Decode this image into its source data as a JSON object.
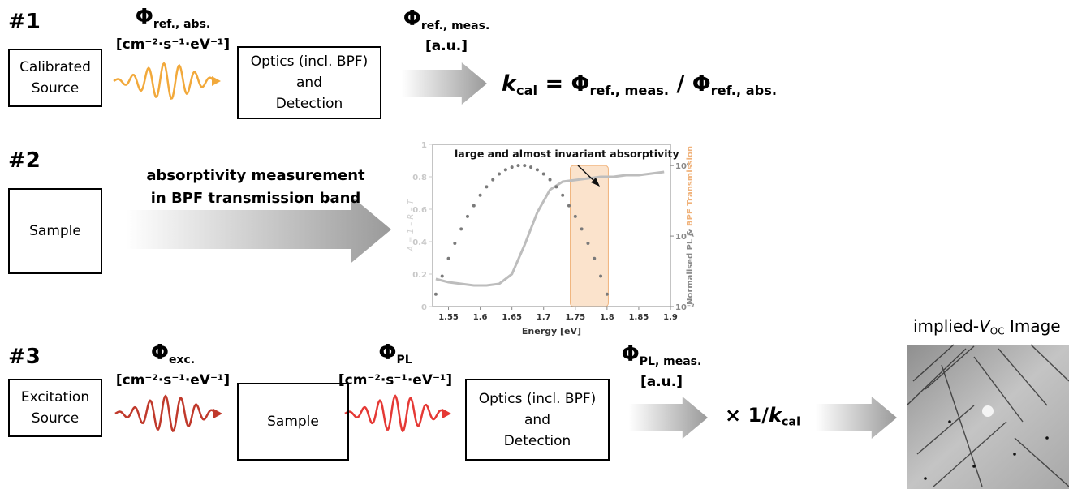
{
  "step1": {
    "label": "#1",
    "source_box": [
      "Calibrated",
      "Source"
    ],
    "flux_in": {
      "symbol": "Φ",
      "sub": "ref., abs.",
      "unit": "[cm⁻²·s⁻¹·eV⁻¹]"
    },
    "detector_box": [
      "Optics (incl. BPF)",
      "and",
      "Detection"
    ],
    "flux_out": {
      "symbol": "Φ",
      "sub": "ref., meas.",
      "unit": "[a.u.]"
    },
    "equation": [
      {
        "text": "k",
        "style": "italic"
      },
      {
        "text": "cal",
        "style": "sub"
      },
      {
        "text": " = Φ"
      },
      {
        "text": "ref., meas.",
        "style": "sub"
      },
      {
        "text": " / Φ"
      },
      {
        "text": "ref., abs.",
        "style": "sub"
      }
    ]
  },
  "step2": {
    "label": "#2",
    "sample_box": [
      "Sample"
    ],
    "arrow_text": [
      "absorptivity measurement",
      "in BPF transmission band"
    ],
    "inset_chart": {
      "type": "combo",
      "annotation": "large and almost invariant absorptivity",
      "xlabel": "Energy [eV]",
      "ylabel": "A = 1 – R – T",
      "y2label": [
        "Normalised PL & ",
        "BPF Transmission"
      ],
      "y2label_colors": [
        "#8a8a8a",
        "#f0b27a"
      ],
      "xlim": [
        1.525,
        1.9
      ],
      "xticks": [
        1.55,
        1.6,
        1.65,
        1.7,
        1.75,
        1.8,
        1.85,
        1.9
      ],
      "ylim": [
        0,
        1
      ],
      "yticks": [
        0,
        0.2,
        0.4,
        0.6,
        0.8,
        1
      ],
      "y2lim": [
        0.01,
        2
      ],
      "y2scale": "log",
      "y2ticks": [
        {
          "value": 0.01,
          "label": "10⁻²"
        },
        {
          "value": 0.1,
          "label": "10⁻¹"
        },
        {
          "value": 1,
          "label": "10⁰"
        }
      ],
      "series": [
        {
          "style": "band",
          "axis": "y2",
          "color": "#fbe3cc",
          "x": [
            1.742,
            1.802
          ],
          "values": [
            1,
            1
          ]
        },
        {
          "style": "line",
          "color": "#bdbdbd",
          "x": [
            1.53,
            1.55,
            1.57,
            1.59,
            1.61,
            1.63,
            1.65,
            1.67,
            1.69,
            1.71,
            1.73,
            1.75,
            1.77,
            1.79,
            1.81,
            1.83,
            1.85,
            1.87,
            1.89
          ],
          "values": [
            0.17,
            0.15,
            0.14,
            0.13,
            0.13,
            0.14,
            0.2,
            0.38,
            0.58,
            0.72,
            0.77,
            0.78,
            0.79,
            0.8,
            0.8,
            0.81,
            0.81,
            0.82,
            0.83
          ]
        },
        {
          "style": "dots",
          "axis": "y2",
          "color": "#7a7a7a",
          "x": [
            1.53,
            1.54,
            1.55,
            1.56,
            1.57,
            1.58,
            1.59,
            1.6,
            1.61,
            1.62,
            1.63,
            1.64,
            1.65,
            1.66,
            1.67,
            1.68,
            1.69,
            1.7,
            1.71,
            1.72,
            1.73,
            1.74,
            1.75,
            1.76,
            1.77,
            1.78,
            1.79,
            1.8
          ],
          "values": [
            0.015,
            0.027,
            0.048,
            0.079,
            0.126,
            0.19,
            0.27,
            0.38,
            0.5,
            0.63,
            0.76,
            0.87,
            0.95,
            1.0,
            1.0,
            0.95,
            0.87,
            0.76,
            0.63,
            0.5,
            0.38,
            0.27,
            0.19,
            0.126,
            0.079,
            0.048,
            0.027,
            0.015
          ]
        }
      ]
    }
  },
  "step3": {
    "label": "#3",
    "source_box": [
      "Excitation",
      "Source"
    ],
    "flux_exc": {
      "symbol": "Φ",
      "sub": "exc.",
      "unit": "[cm⁻²·s⁻¹·eV⁻¹]"
    },
    "sample_box": [
      "Sample"
    ],
    "flux_pl": {
      "symbol": "Φ",
      "sub": "PL",
      "unit": "[cm⁻²·s⁻¹·eV⁻¹]"
    },
    "detector_box": [
      "Optics (incl. BPF)",
      "and",
      "Detection"
    ],
    "flux_out": {
      "symbol": "Φ",
      "sub": "PL, meas.",
      "unit": "[a.u.]"
    },
    "scaling": [
      {
        "text": "× 1/"
      },
      {
        "text": "k",
        "style": "italic"
      },
      {
        "text": "cal",
        "style": "sub"
      }
    ],
    "image_title": [
      {
        "text": "implied-"
      },
      {
        "text": "V",
        "style": "italic"
      },
      {
        "text": "OC",
        "style": "sub"
      },
      {
        "text": " Image"
      }
    ]
  }
}
